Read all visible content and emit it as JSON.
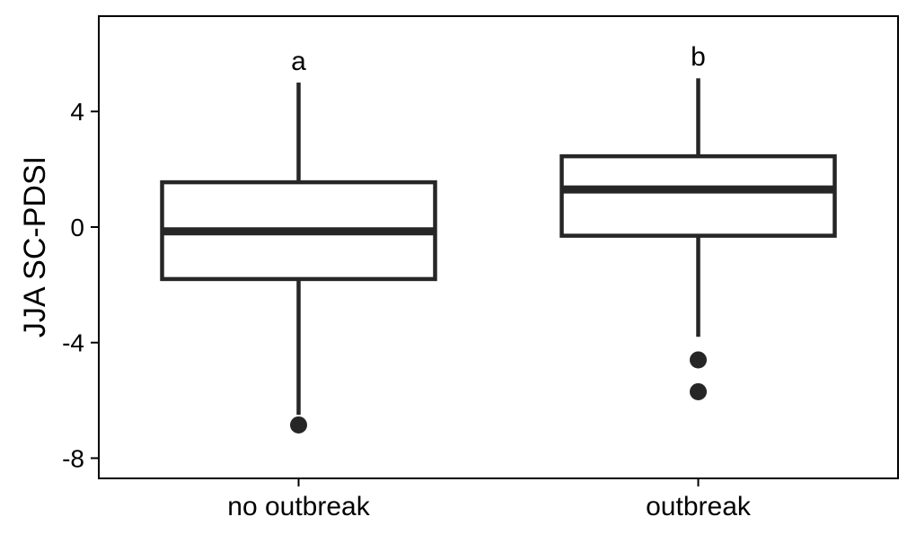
{
  "chart_data": {
    "type": "box",
    "title": "",
    "xlabel": "",
    "ylabel": "JJA SC-PDSI",
    "categories": [
      "no outbreak",
      "outbreak"
    ],
    "ylim": [
      -8.7,
      7.3
    ],
    "yticks": [
      -8,
      -4,
      0,
      4
    ],
    "grid": false,
    "boxes": [
      {
        "category": "no outbreak",
        "whisker_low": -6.5,
        "q1": -1.8,
        "median": -0.15,
        "q3": 1.55,
        "whisker_high": 5.0,
        "outliers": [
          -6.85
        ],
        "annotation": "a"
      },
      {
        "category": "outbreak",
        "whisker_low": -3.8,
        "q1": -0.3,
        "median": 1.3,
        "q3": 2.45,
        "whisker_high": 5.15,
        "outliers": [
          -4.6,
          -5.7
        ],
        "annotation": "b"
      }
    ],
    "colors": {
      "stroke": "#262626",
      "fill": "#ffffff",
      "axis": "#000000"
    }
  }
}
